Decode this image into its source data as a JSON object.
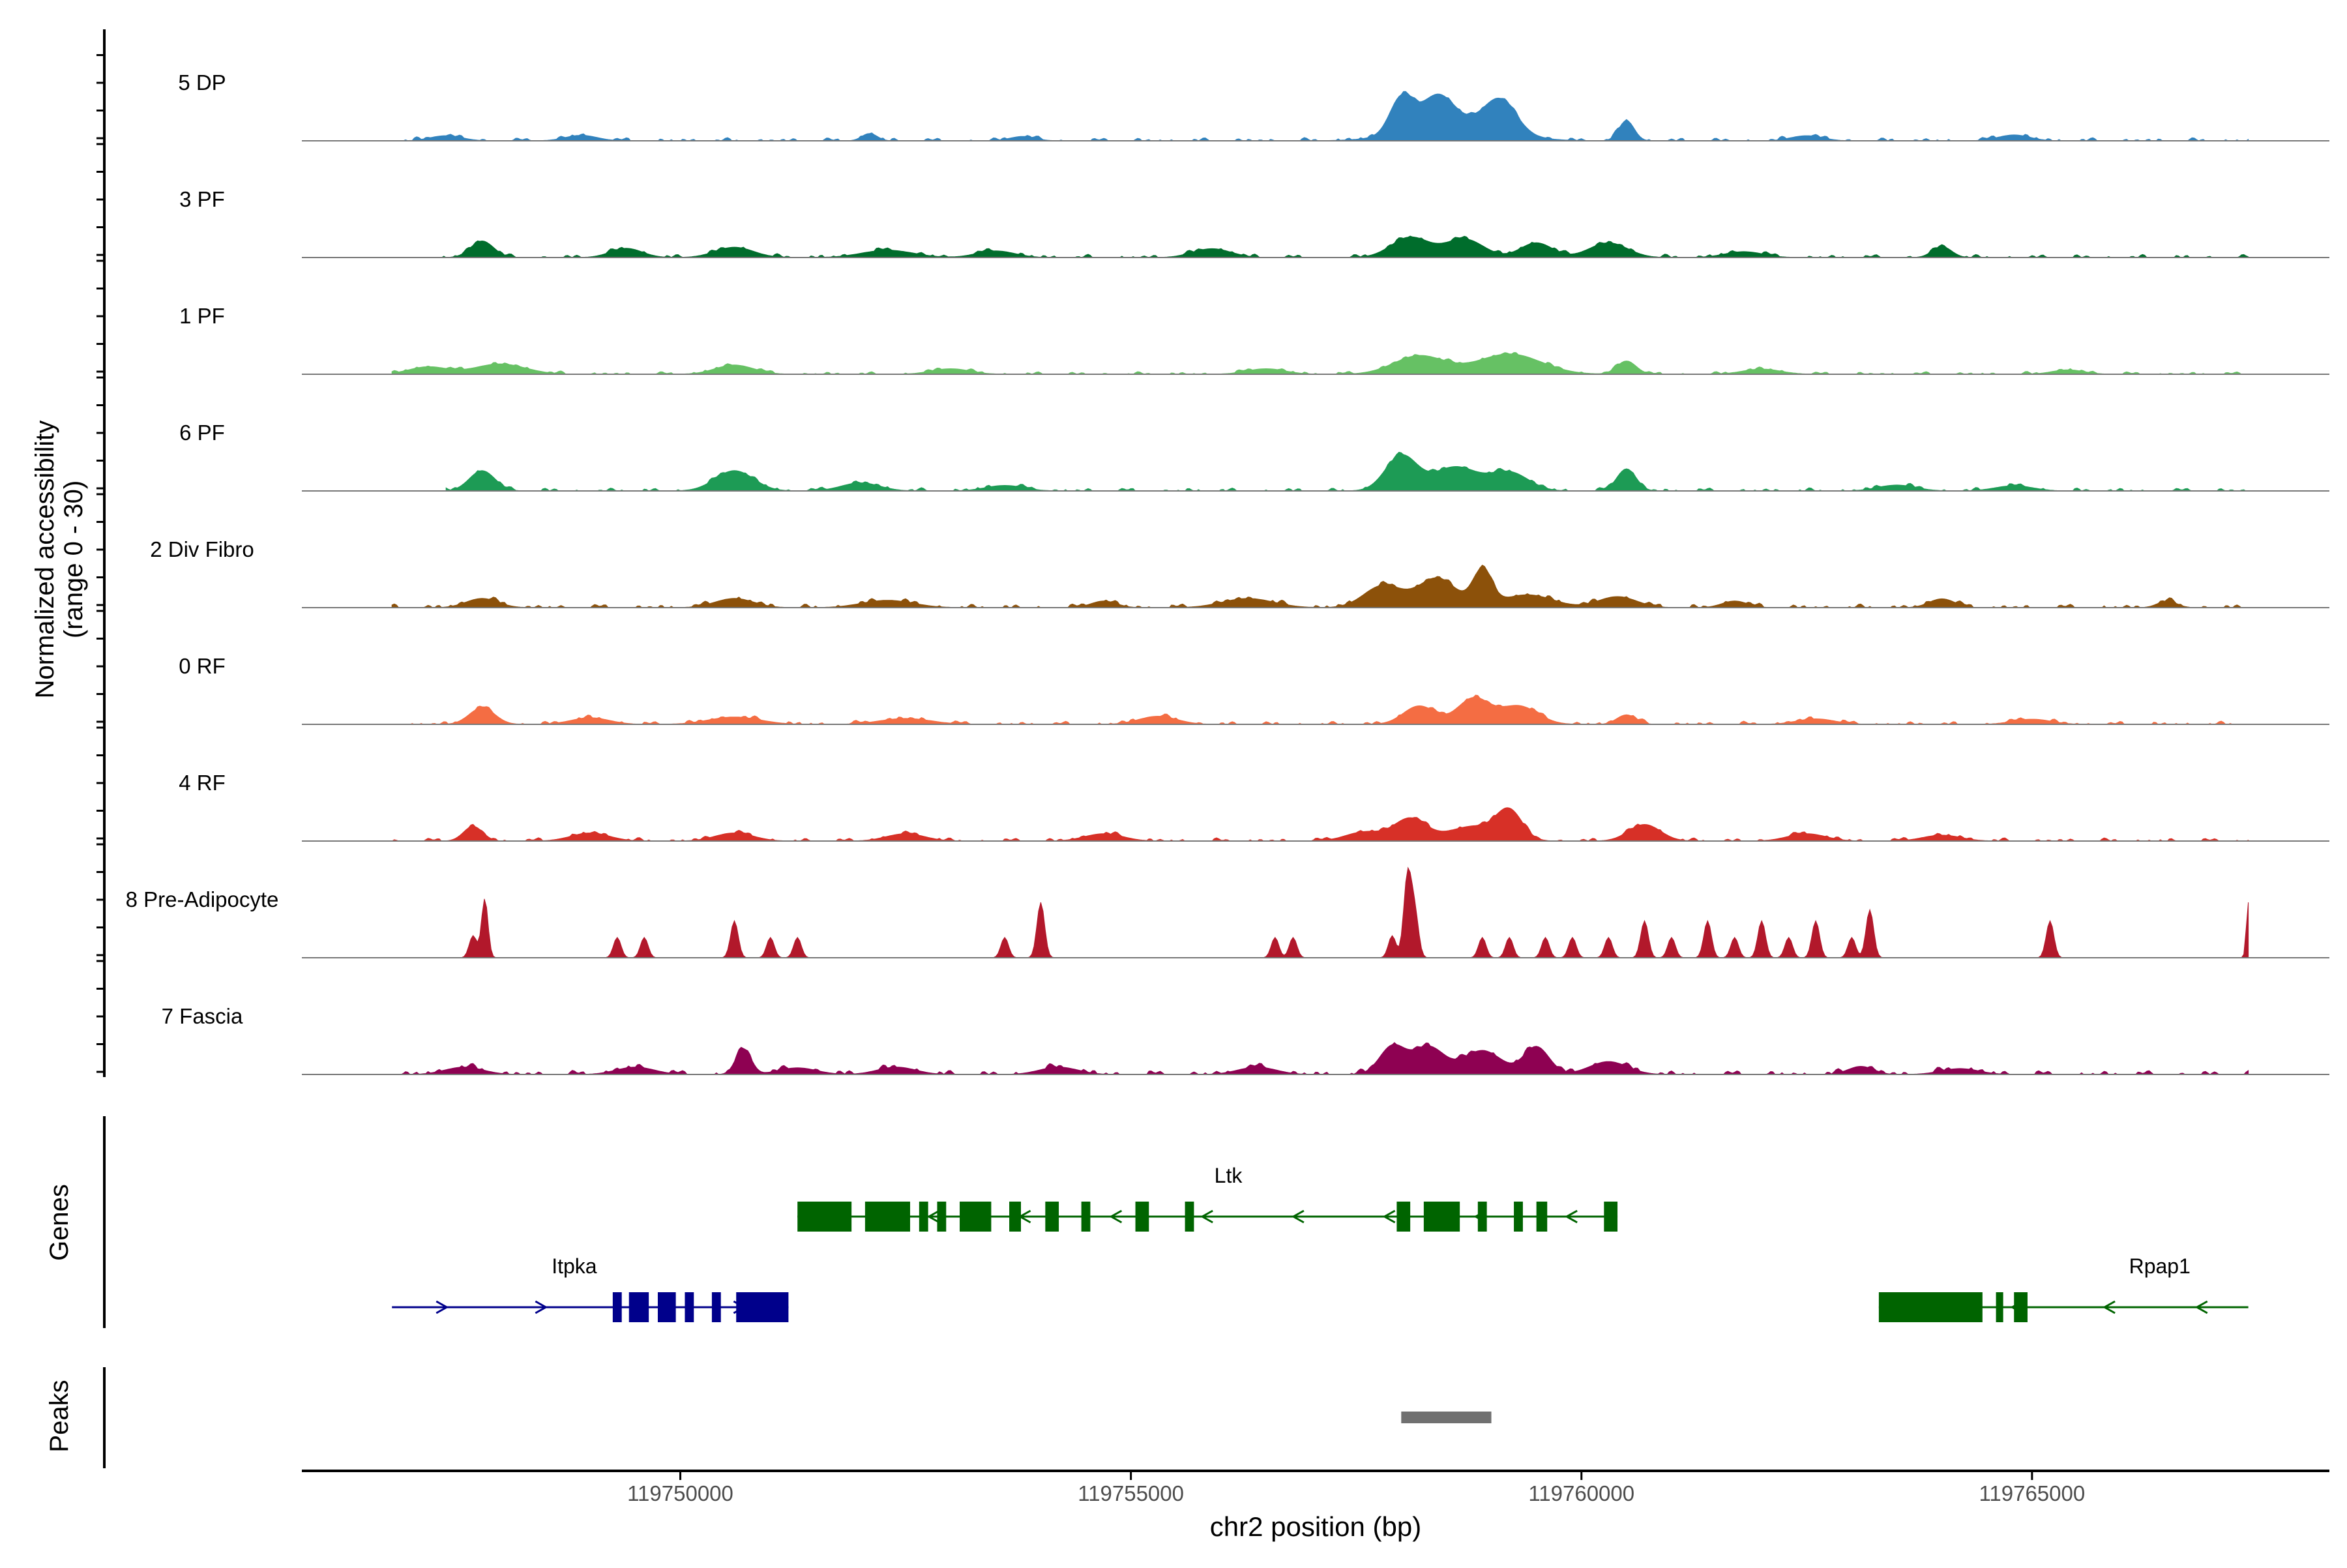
{
  "chart_data": {
    "type": "area",
    "title": "",
    "xlabel": "chr2 position (bp)",
    "ylabel": "Normalized accessibility",
    "ylabel_sub": "(range 0 - 30)",
    "y_range": [
      0,
      30
    ],
    "x_range": [
      119745800,
      119768300
    ],
    "x_ticks": [
      119750000,
      119755000,
      119760000,
      119765000
    ],
    "x_tick_labels": [
      "119750000",
      "119755000",
      "119760000",
      "119765000"
    ],
    "panel_labels": {
      "genes": "Genes",
      "peaks": "Peaks"
    },
    "series": [
      {
        "name": "5 DP",
        "color": "#3182BD",
        "start": 119746800,
        "end": 119767400,
        "wiggle": 0.6,
        "peaks": [
          [
            119747400,
            1.4,
            250
          ],
          [
            119748900,
            1.5,
            250
          ],
          [
            119752100,
            2.0,
            120
          ],
          [
            119753800,
            1.2,
            200
          ],
          [
            119758000,
            9.5,
            180
          ],
          [
            119758400,
            8.0,
            250
          ],
          [
            119759100,
            8.5,
            250
          ],
          [
            119758600,
            5.0,
            700
          ],
          [
            119760500,
            5.5,
            120
          ],
          [
            119762500,
            1.4,
            250
          ],
          [
            119764800,
            1.6,
            250
          ]
        ]
      },
      {
        "name": "3 PF",
        "color": "#006D2C",
        "start": 119747100,
        "end": 119767400,
        "wiggle": 0.6,
        "peaks": [
          [
            119747800,
            4.5,
            180
          ],
          [
            119749400,
            2.5,
            250
          ],
          [
            119750600,
            2.8,
            300
          ],
          [
            119752300,
            2.0,
            400
          ],
          [
            119753500,
            1.8,
            300
          ],
          [
            119755900,
            2.4,
            300
          ],
          [
            119758100,
            5.5,
            300
          ],
          [
            119758700,
            5.0,
            300
          ],
          [
            119759500,
            4.0,
            250
          ],
          [
            119760300,
            4.0,
            300
          ],
          [
            119761800,
            1.6,
            300
          ],
          [
            119764000,
            3.0,
            150
          ]
        ]
      },
      {
        "name": "1 PF",
        "color": "#66C164",
        "start": 119746800,
        "end": 119767400,
        "wiggle": 0.5,
        "peaks": [
          [
            119747200,
            2.0,
            300
          ],
          [
            119748000,
            2.8,
            400
          ],
          [
            119750600,
            2.5,
            300
          ],
          [
            119753000,
            1.5,
            300
          ],
          [
            119756500,
            1.5,
            300
          ],
          [
            119758200,
            5.0,
            400
          ],
          [
            119759200,
            5.5,
            500
          ],
          [
            119760500,
            3.6,
            150
          ],
          [
            119762000,
            1.4,
            300
          ],
          [
            119765400,
            1.2,
            250
          ]
        ]
      },
      {
        "name": "6 PF",
        "color": "#1D9B55",
        "start": 119747400,
        "end": 119767400,
        "wiggle": 0.6,
        "peaks": [
          [
            119747800,
            5.5,
            200
          ],
          [
            119750600,
            5.5,
            300
          ],
          [
            119752000,
            2.2,
            300
          ],
          [
            119753600,
            1.5,
            300
          ],
          [
            119758000,
            9.5,
            250
          ],
          [
            119758600,
            6.5,
            350
          ],
          [
            119759200,
            5.0,
            300
          ],
          [
            119760500,
            6.0,
            150
          ],
          [
            119763500,
            1.6,
            300
          ],
          [
            119764800,
            1.4,
            300
          ]
        ]
      },
      {
        "name": "2 Div Fibro",
        "color": "#8C510A",
        "start": 119746800,
        "end": 119767400,
        "wiggle": 0.7,
        "peaks": [
          [
            119747800,
            2.5,
            250
          ],
          [
            119750600,
            2.5,
            300
          ],
          [
            119752300,
            2.0,
            400
          ],
          [
            119754700,
            1.8,
            200
          ],
          [
            119756300,
            2.5,
            400
          ],
          [
            119757800,
            6.0,
            300
          ],
          [
            119758400,
            8.0,
            300
          ],
          [
            119758900,
            9.5,
            150
          ],
          [
            119759400,
            3.5,
            400
          ],
          [
            119760400,
            3.0,
            300
          ],
          [
            119761700,
            1.8,
            200
          ],
          [
            119764000,
            2.4,
            200
          ],
          [
            119766500,
            1.8,
            150
          ]
        ]
      },
      {
        "name": "0 RF",
        "color": "#F46D43",
        "start": 119746800,
        "end": 119767400,
        "wiggle": 0.6,
        "peaks": [
          [
            119747800,
            4.5,
            200
          ],
          [
            119749000,
            1.8,
            300
          ],
          [
            119750600,
            2.0,
            400
          ],
          [
            119752500,
            1.6,
            400
          ],
          [
            119755300,
            2.2,
            300
          ],
          [
            119758200,
            5.0,
            250
          ],
          [
            119758800,
            7.0,
            250
          ],
          [
            119759300,
            5.0,
            300
          ],
          [
            119760500,
            2.6,
            150
          ],
          [
            119762600,
            1.5,
            300
          ],
          [
            119765000,
            1.4,
            300
          ]
        ]
      },
      {
        "name": "4 RF",
        "color": "#D73027",
        "start": 119746800,
        "end": 119767400,
        "wiggle": 0.6,
        "peaks": [
          [
            119747700,
            4.0,
            150
          ],
          [
            119749000,
            2.2,
            300
          ],
          [
            119750600,
            2.2,
            300
          ],
          [
            119752500,
            2.0,
            300
          ],
          [
            119754700,
            2.0,
            300
          ],
          [
            119757600,
            2.5,
            300
          ],
          [
            119758100,
            6.0,
            250
          ],
          [
            119759200,
            7.5,
            200
          ],
          [
            119758800,
            4.0,
            400
          ],
          [
            119760700,
            4.5,
            250
          ],
          [
            119762500,
            2.0,
            300
          ],
          [
            119764000,
            1.6,
            300
          ]
        ]
      },
      {
        "name": "8 Pre-Adipocyte",
        "color": "#B2182B",
        "start": 119746800,
        "end": 119767400,
        "wiggle": 0,
        "peaks": [
          [
            119747700,
            6.0,
            60
          ],
          [
            119747830,
            16.0,
            50
          ],
          [
            119749300,
            5.5,
            60
          ],
          [
            119749600,
            5.5,
            60
          ],
          [
            119750600,
            10.0,
            60
          ],
          [
            119751000,
            5.5,
            60
          ],
          [
            119751300,
            5.5,
            60
          ],
          [
            119753600,
            5.5,
            60
          ],
          [
            119754000,
            15.0,
            60
          ],
          [
            119756600,
            5.5,
            60
          ],
          [
            119756800,
            5.5,
            60
          ],
          [
            119757900,
            6.0,
            60
          ],
          [
            119758070,
            22.0,
            60
          ],
          [
            119758150,
            12.0,
            60
          ],
          [
            119758900,
            5.5,
            60
          ],
          [
            119759200,
            5.5,
            60
          ],
          [
            119759600,
            5.5,
            60
          ],
          [
            119759900,
            5.5,
            60
          ],
          [
            119760300,
            5.5,
            60
          ],
          [
            119760700,
            10.0,
            60
          ],
          [
            119761000,
            5.5,
            60
          ],
          [
            119761400,
            10.0,
            60
          ],
          [
            119761700,
            5.5,
            60
          ],
          [
            119762000,
            10.0,
            60
          ],
          [
            119762300,
            5.5,
            60
          ],
          [
            119762600,
            10.0,
            60
          ],
          [
            119763000,
            5.5,
            60
          ],
          [
            119763200,
            13.0,
            60
          ],
          [
            119765200,
            10.0,
            60
          ],
          [
            119767400,
            15.0,
            30
          ]
        ]
      },
      {
        "name": "7 Fascia",
        "color": "#8E0152",
        "start": 119746800,
        "end": 119767400,
        "wiggle": 0.8,
        "peaks": [
          [
            119747600,
            2.0,
            300
          ],
          [
            119749500,
            2.0,
            300
          ],
          [
            119750700,
            7.0,
            120
          ],
          [
            119751300,
            1.8,
            300
          ],
          [
            119752400,
            2.0,
            300
          ],
          [
            119754200,
            2.0,
            300
          ],
          [
            119756400,
            2.0,
            300
          ],
          [
            119757900,
            7.5,
            200
          ],
          [
            119758300,
            7.5,
            250
          ],
          [
            119758900,
            6.5,
            300
          ],
          [
            119759500,
            7.5,
            200
          ],
          [
            119760300,
            3.5,
            300
          ],
          [
            119763100,
            2.2,
            200
          ],
          [
            119764200,
            1.6,
            300
          ]
        ]
      }
    ],
    "genes": [
      {
        "name": "Itpka",
        "color": "#00008B",
        "strand": "+",
        "start": 119746800,
        "end": 119751200,
        "exons": [
          [
            119749250,
            119749350
          ],
          [
            119749430,
            119749650
          ],
          [
            119749750,
            119749950
          ],
          [
            119750050,
            119750150
          ],
          [
            119750350,
            119750450
          ],
          [
            119750620,
            119751200
          ]
        ]
      },
      {
        "name": "Ltk",
        "color": "#006400",
        "strand": "-",
        "start": 119751300,
        "end": 119760400,
        "exons": [
          [
            119751300,
            119751900
          ],
          [
            119752050,
            119752550
          ],
          [
            119752650,
            119752750
          ],
          [
            119752850,
            119752950
          ],
          [
            119753100,
            119753450
          ],
          [
            119753650,
            119753780
          ],
          [
            119754050,
            119754200
          ],
          [
            119754450,
            119754550
          ],
          [
            119755050,
            119755200
          ],
          [
            119755600,
            119755700
          ],
          [
            119757950,
            119758100
          ],
          [
            119758250,
            119758650
          ],
          [
            119758850,
            119758950
          ],
          [
            119759250,
            119759350
          ],
          [
            119759500,
            119759620
          ],
          [
            119760250,
            119760400
          ]
        ]
      },
      {
        "name": "Rpap1",
        "color": "#006400",
        "strand": "-",
        "start": 119763300,
        "end": 119767400,
        "exons": [
          [
            119763300,
            119764450
          ],
          [
            119764600,
            119764680
          ],
          [
            119764800,
            119764950
          ]
        ]
      }
    ],
    "peak_regions": [
      {
        "start": 119758000,
        "end": 119759000,
        "color": "#707070"
      }
    ]
  }
}
